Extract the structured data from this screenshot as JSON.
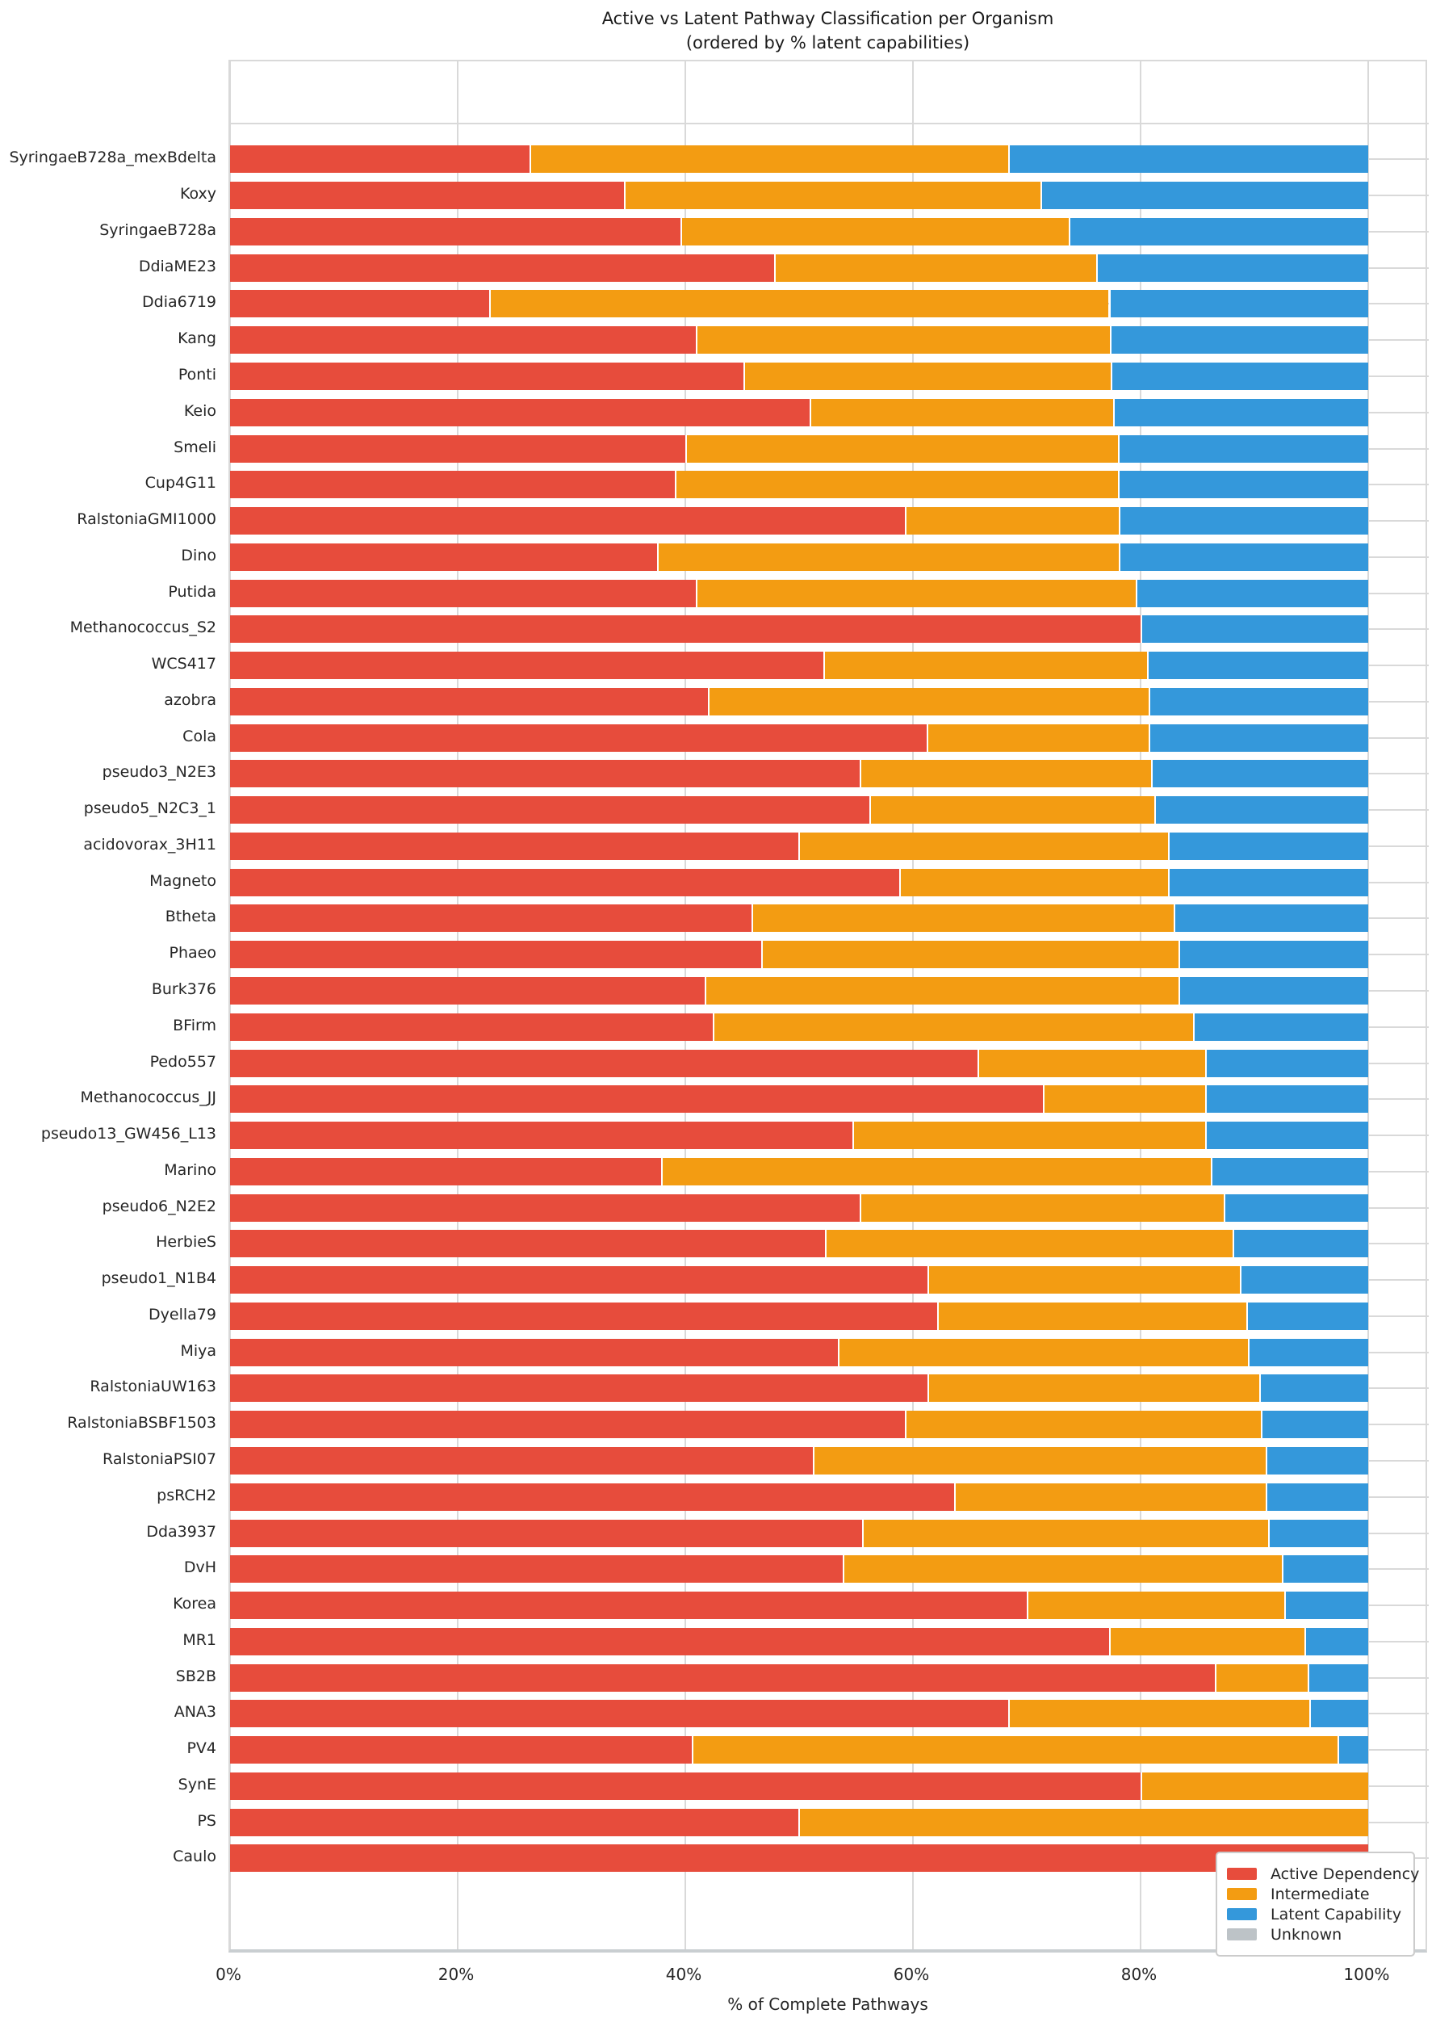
{
  "title": {
    "line1": "Active vs Latent Pathway Classification per Organism",
    "line2": "(ordered by % latent capabilities)"
  },
  "x_axis": {
    "label": "% of Complete Pathways",
    "tick_labels": [
      "0%",
      "20%",
      "40%",
      "60%",
      "80%",
      "100%"
    ],
    "tick_values": [
      0,
      20,
      40,
      60,
      80,
      100
    ]
  },
  "legend": {
    "items": [
      {
        "label": "Active Dependency",
        "color": "#e74c3c"
      },
      {
        "label": "Intermediate",
        "color": "#f39c12"
      },
      {
        "label": "Latent Capability",
        "color": "#3498db"
      },
      {
        "label": "Unknown",
        "color": "#bdc3c7"
      }
    ]
  },
  "colors": {
    "active": "#e74c3c",
    "intermediate": "#f39c12",
    "latent": "#3498db",
    "unknown": "#bdc3c7",
    "grid": "#d9d9d9"
  },
  "chart_data": {
    "type": "bar",
    "orientation": "horizontal",
    "stacked": true,
    "title": "Active vs Latent Pathway Classification per Organism (ordered by % latent capabilities)",
    "xlabel": "% of Complete Pathways",
    "ylabel": "",
    "xlim": [
      0,
      105.3
    ],
    "grid": true,
    "legend_position": "lower right",
    "categories": [
      "SyringaeB728a_mexBdelta",
      "Koxy",
      "SyringaeB728a",
      "DdiaME23",
      "Ddia6719",
      "Kang",
      "Ponti",
      "Keio",
      "Smeli",
      "Cup4G11",
      "RalstoniaGMI1000",
      "Dino",
      "Putida",
      "Methanococcus_S2",
      "WCS417",
      "azobra",
      "Cola",
      "pseudo3_N2E3",
      "pseudo5_N2C3_1",
      "acidovorax_3H11",
      "Magneto",
      "Btheta",
      "Phaeo",
      "Burk376",
      "BFirm",
      "Pedo557",
      "Methanococcus_JJ",
      "pseudo13_GW456_L13",
      "Marino",
      "pseudo6_N2E2",
      "HerbieS",
      "pseudo1_N1B4",
      "Dyella79",
      "Miya",
      "RalstoniaUW163",
      "RalstoniaBSBF1503",
      "RalstoniaPSI07",
      "psRCH2",
      "Dda3937",
      "DvH",
      "Korea",
      "MR1",
      "SB2B",
      "ANA3",
      "PV4",
      "SynE",
      "PS",
      "Caulo"
    ],
    "series": [
      {
        "name": "Active Dependency",
        "values": [
          26.3,
          34.6,
          39.6,
          47.8,
          22.8,
          40.9,
          45.1,
          50.9,
          40.0,
          39.1,
          59.3,
          37.5,
          40.9,
          80.0,
          52.1,
          42.0,
          61.2,
          55.3,
          56.2,
          49.9,
          58.8,
          45.8,
          46.7,
          41.7,
          42.4,
          65.7,
          71.4,
          54.7,
          37.9,
          55.3,
          52.3,
          61.3,
          62.1,
          53.4,
          61.3,
          59.3,
          51.2,
          63.6,
          55.5,
          53.8,
          70.0,
          77.2,
          86.5,
          68.4,
          40.6,
          80.0,
          49.9,
          100.0
        ]
      },
      {
        "name": "Intermediate",
        "values": [
          42.1,
          36.6,
          34.1,
          28.3,
          54.4,
          36.4,
          32.3,
          26.7,
          38.0,
          38.9,
          18.8,
          40.6,
          38.7,
          0.0,
          28.5,
          38.7,
          19.5,
          25.6,
          25.0,
          32.5,
          23.6,
          37.1,
          36.6,
          41.6,
          42.2,
          20.0,
          14.3,
          31.0,
          48.3,
          32.0,
          35.8,
          27.4,
          27.2,
          36.0,
          29.1,
          31.3,
          39.8,
          27.4,
          35.7,
          38.6,
          22.6,
          17.2,
          8.2,
          26.4,
          56.7,
          20.0,
          50.1,
          0.0
        ]
      },
      {
        "name": "Latent Capability",
        "values": [
          31.6,
          28.8,
          26.3,
          23.9,
          22.8,
          22.7,
          22.6,
          22.4,
          22.0,
          22.0,
          21.9,
          21.9,
          20.4,
          20.0,
          19.4,
          19.3,
          19.3,
          19.1,
          18.8,
          17.6,
          17.6,
          17.1,
          16.7,
          16.7,
          15.4,
          14.3,
          14.3,
          14.3,
          13.8,
          12.7,
          11.9,
          11.3,
          10.7,
          10.6,
          9.6,
          9.4,
          9.0,
          9.0,
          8.8,
          7.6,
          7.4,
          5.6,
          5.3,
          5.2,
          2.7,
          0.0,
          0.0,
          0.0
        ]
      },
      {
        "name": "Unknown",
        "values": [
          0,
          0,
          0,
          0,
          0,
          0,
          0,
          0,
          0,
          0,
          0,
          0,
          0,
          0,
          0,
          0,
          0,
          0,
          0,
          0,
          0,
          0,
          0,
          0,
          0,
          0,
          0,
          0,
          0,
          0,
          0,
          0,
          0,
          0,
          0,
          0,
          0,
          0,
          0,
          0,
          0,
          0,
          0,
          0,
          0,
          0,
          0,
          0
        ]
      }
    ]
  }
}
